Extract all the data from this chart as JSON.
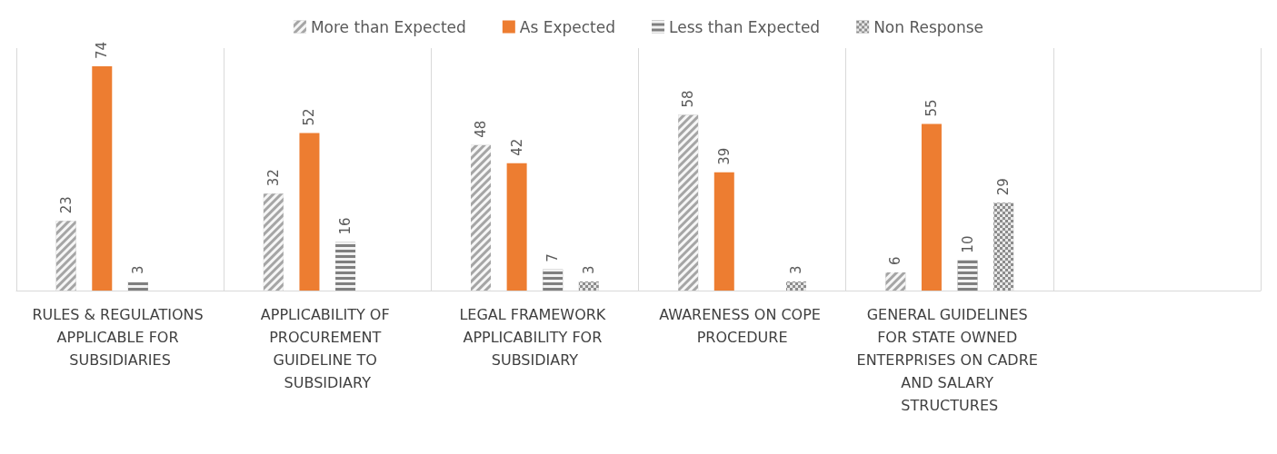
{
  "chart_data": {
    "type": "bar",
    "categories": [
      "RULES & REGULATIONS APPLICABLE FOR SUBSIDIARIES",
      "APPLICABILITY OF PROCUREMENT GUIDELINE TO SUBSIDIARY",
      "LEGAL FRAMEWORK APPLICABILITY FOR SUBSIDIARY",
      "AWARENESS ON COPE PROCEDURE",
      "GENERAL GUIDELINES FOR STATE OWNED ENTERPRISES ON CADRE AND SALARY STRUCTURES",
      null
    ],
    "series": [
      {
        "name": "More than Expected",
        "color": "#a5a5a5",
        "values": [
          23,
          32,
          48,
          58,
          6,
          null
        ]
      },
      {
        "name": "As Expected",
        "color": "#ed7d31",
        "values": [
          74,
          52,
          42,
          39,
          55,
          null
        ]
      },
      {
        "name": "Less than Expected",
        "color": "#7f7f7f",
        "values": [
          3,
          16,
          7,
          null,
          10,
          null
        ]
      },
      {
        "name": "Non Response",
        "color": "#8c8c8c",
        "values": [
          null,
          null,
          3,
          3,
          29,
          null
        ]
      }
    ],
    "data_labels": true,
    "legend": "top"
  }
}
